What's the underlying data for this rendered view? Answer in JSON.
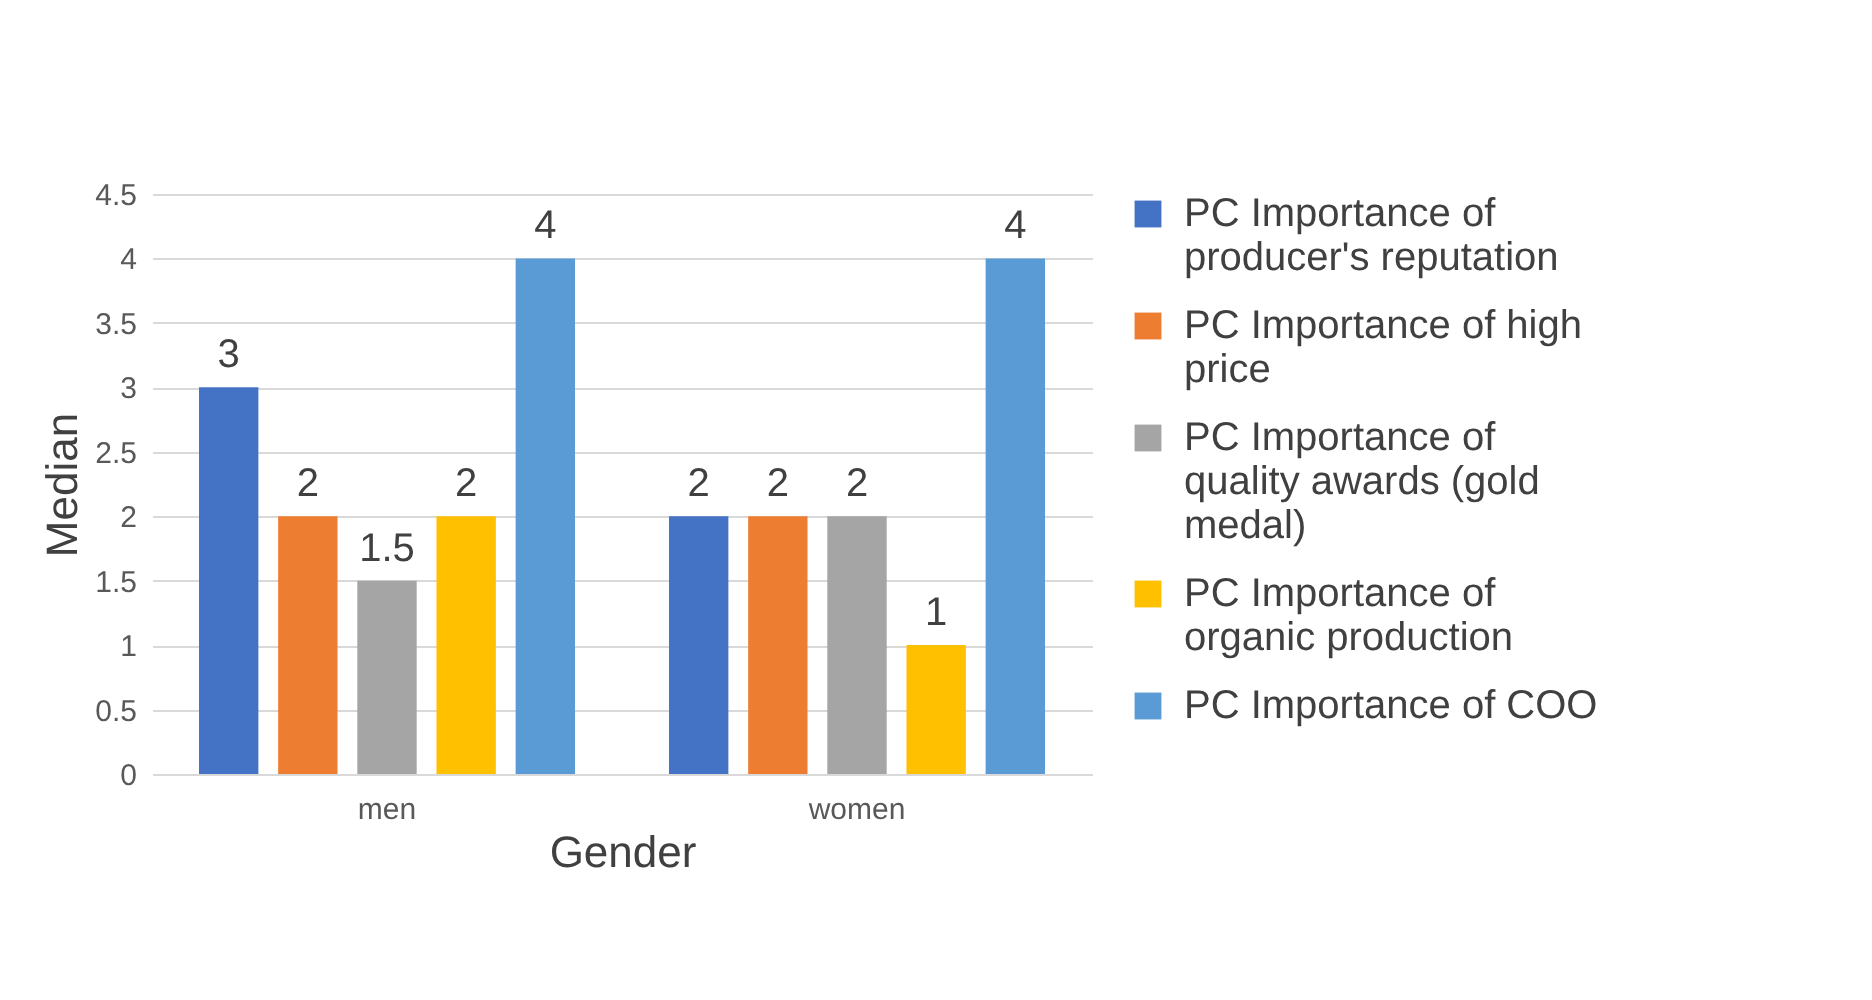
{
  "chart_data": {
    "type": "bar",
    "xlabel": "Gender",
    "ylabel": "Median",
    "categories": [
      "men",
      "women"
    ],
    "series": [
      {
        "name": "PC Importance of producer's reputation",
        "color": "#4472c4",
        "values": [
          3,
          2
        ]
      },
      {
        "name": "PC Importance of high price",
        "color": "#ed7d31",
        "values": [
          2,
          2
        ]
      },
      {
        "name": "PC Importance of quality awards (gold medal)",
        "color": "#a5a5a5",
        "values": [
          1.5,
          2
        ]
      },
      {
        "name": "PC Importance of organic production",
        "color": "#ffc000",
        "values": [
          2,
          1
        ]
      },
      {
        "name": "PC Importance of COO",
        "color": "#5b9bd5",
        "values": [
          4,
          4
        ]
      }
    ],
    "ylim": [
      0,
      4.5
    ],
    "yticks": [
      0,
      0.5,
      1,
      1.5,
      2,
      2.5,
      3,
      3.5,
      4,
      4.5
    ],
    "grid": "y",
    "legend": "right",
    "data_labels": true
  }
}
